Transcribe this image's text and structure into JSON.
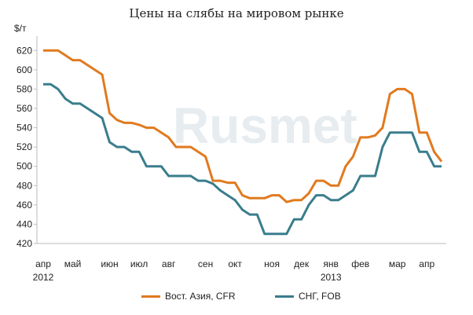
{
  "chart_data": {
    "type": "line",
    "title": "Цены на слябы на мировом рынке",
    "unit_label": "$/т",
    "watermark": "Rusmet",
    "ylim": [
      420,
      630
    ],
    "yticks": [
      420,
      440,
      460,
      480,
      500,
      520,
      540,
      560,
      580,
      600,
      620
    ],
    "grid": false,
    "legend_position": "bottom",
    "x_month_labels": [
      {
        "label": "апр",
        "year": "2012",
        "idx": 0
      },
      {
        "label": "май",
        "idx": 4
      },
      {
        "label": "июн",
        "idx": 9
      },
      {
        "label": "июл",
        "idx": 13
      },
      {
        "label": "авг",
        "idx": 17
      },
      {
        "label": "сен",
        "idx": 22
      },
      {
        "label": "окт",
        "idx": 26
      },
      {
        "label": "ноя",
        "idx": 31
      },
      {
        "label": "дек",
        "idx": 35
      },
      {
        "label": "янв",
        "year": "2013",
        "idx": 39
      },
      {
        "label": "фев",
        "idx": 43
      },
      {
        "label": "мар",
        "idx": 48
      },
      {
        "label": "апр",
        "idx": 52
      }
    ],
    "series": [
      {
        "name": "Вост. Азия, CFR",
        "color": "#e07a1f",
        "values": [
          620,
          620,
          620,
          615,
          610,
          610,
          605,
          600,
          595,
          555,
          548,
          545,
          545,
          543,
          540,
          540,
          535,
          530,
          520,
          520,
          520,
          515,
          510,
          485,
          485,
          483,
          483,
          470,
          467,
          467,
          467,
          470,
          470,
          463,
          465,
          465,
          472,
          485,
          485,
          480,
          480,
          500,
          510,
          530,
          530,
          532,
          540,
          575,
          580,
          580,
          575,
          535,
          535,
          515,
          505
        ]
      },
      {
        "name": "СНГ, FOB",
        "color": "#3a7d8c",
        "values": [
          585,
          585,
          580,
          570,
          565,
          565,
          560,
          555,
          550,
          525,
          520,
          520,
          515,
          515,
          500,
          500,
          500,
          490,
          490,
          490,
          490,
          485,
          485,
          482,
          475,
          470,
          465,
          455,
          450,
          450,
          430,
          430,
          430,
          430,
          445,
          445,
          460,
          470,
          470,
          465,
          465,
          470,
          475,
          490,
          490,
          490,
          520,
          535,
          535,
          535,
          535,
          515,
          515,
          500,
          500
        ]
      }
    ]
  }
}
